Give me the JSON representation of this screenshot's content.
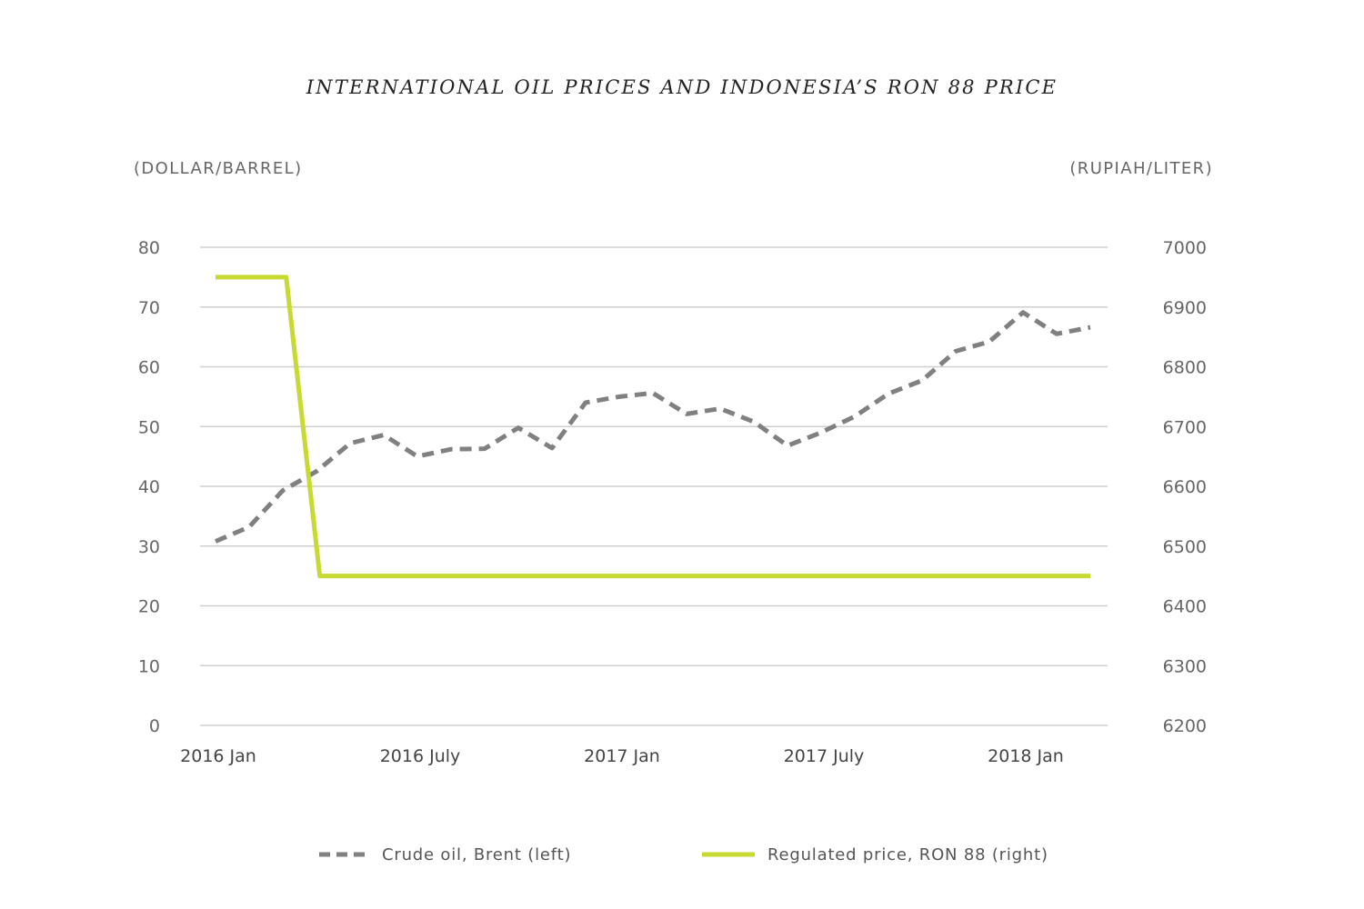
{
  "chart_data": {
    "type": "line",
    "title": "INTERNATIONAL OIL PRICES AND INDONESIA’S RON 88 PRICE",
    "left_axis": {
      "label": "(DOLLAR/BARREL)",
      "range": [
        0,
        80
      ],
      "ticks": [
        0,
        10,
        20,
        30,
        40,
        50,
        60,
        70,
        80
      ]
    },
    "right_axis": {
      "label": "(RUPIAH/LITER)",
      "range": [
        6200,
        7000
      ],
      "ticks": [
        6200,
        6300,
        6400,
        6500,
        6600,
        6700,
        6800,
        6900,
        7000
      ]
    },
    "x_ticks": [
      {
        "label": "2016 Jan",
        "month": 0
      },
      {
        "label": "2016 July",
        "month": 6
      },
      {
        "label": "2017 Jan",
        "month": 12
      },
      {
        "label": "2017 July",
        "month": 18
      },
      {
        "label": "2018 Jan",
        "month": 24
      }
    ],
    "x_range": [
      -0.5,
      26.5
    ],
    "grid": true,
    "series": [
      {
        "name": "Crude oil, Brent (left)",
        "axis": "left",
        "style": "dashed",
        "color": "#808080",
        "x": [
          0,
          1,
          2,
          3,
          4,
          5,
          6,
          7,
          8,
          9,
          10,
          11,
          12,
          13,
          14,
          15,
          16,
          17,
          18,
          19,
          20,
          21,
          22,
          23,
          24,
          25,
          26
        ],
        "values": [
          30.8,
          33.2,
          39.3,
          42.5,
          47.2,
          48.6,
          45.0,
          46.2,
          46.3,
          49.8,
          46.4,
          54.0,
          55.0,
          55.6,
          52.1,
          53.0,
          50.8,
          46.8,
          49.0,
          51.7,
          55.5,
          57.7,
          62.6,
          64.2,
          69.1,
          65.5,
          66.6
        ]
      },
      {
        "name": "Regulated price, RON 88 (right)",
        "axis": "right",
        "style": "solid",
        "color": "#c8d932",
        "x": [
          0,
          2.1,
          3.1,
          26
        ],
        "values": [
          6950,
          6950,
          6450,
          6450
        ]
      }
    ],
    "legend_position": "bottom"
  }
}
